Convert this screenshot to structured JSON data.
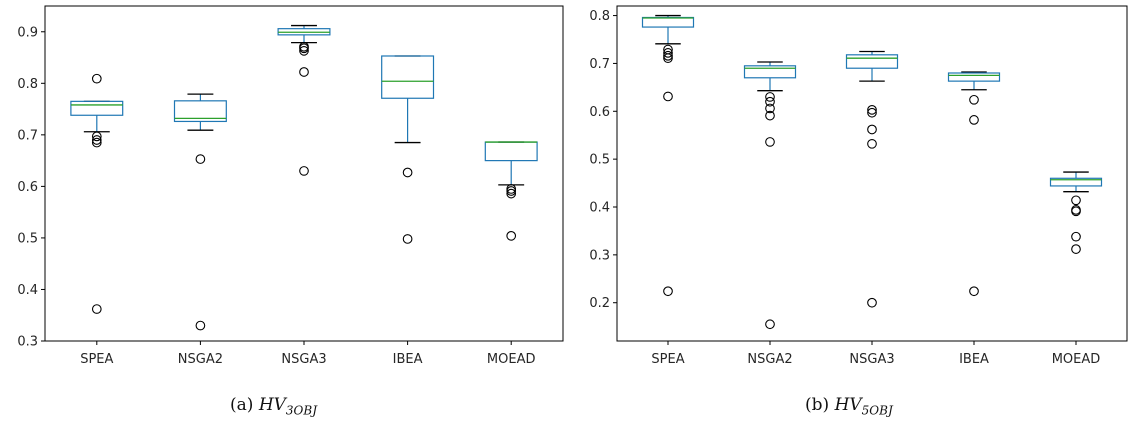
{
  "chart_data": [
    {
      "type": "boxplot",
      "categories": [
        "SPEA",
        "NSGA2",
        "NSGA3",
        "IBEA",
        "MOEAD"
      ],
      "ylim": [
        0.3,
        0.95
      ],
      "yticks": [
        "0.3",
        "0.4",
        "0.5",
        "0.6",
        "0.7",
        "0.8",
        "0.9"
      ],
      "grid": false,
      "caption": {
        "prefix": "(a) ",
        "main": "HV",
        "sub": "3OBJ"
      },
      "colors": {
        "box": "#1f77b4",
        "median": "#2ca02c",
        "whisker": "#1f77b4",
        "cap": "#000000",
        "flier": "#000000"
      },
      "boxes": [
        {
          "name": "SPEA",
          "whislo": 0.706,
          "q1": 0.738,
          "med": 0.758,
          "q3": 0.765,
          "whishi": 0.765,
          "fliers": [
            0.809,
            0.697,
            0.69,
            0.685,
            0.362
          ]
        },
        {
          "name": "NSGA2",
          "whislo": 0.709,
          "q1": 0.726,
          "med": 0.732,
          "q3": 0.766,
          "whishi": 0.779,
          "fliers": [
            0.653,
            0.33
          ]
        },
        {
          "name": "NSGA3",
          "whislo": 0.879,
          "q1": 0.894,
          "med": 0.899,
          "q3": 0.906,
          "whishi": 0.912,
          "fliers": [
            0.871,
            0.868,
            0.863,
            0.822,
            0.63
          ]
        },
        {
          "name": "IBEA",
          "whislo": 0.685,
          "q1": 0.771,
          "med": 0.804,
          "q3": 0.853,
          "whishi": 0.853,
          "fliers": [
            0.627,
            0.498
          ]
        },
        {
          "name": "MOEAD",
          "whislo": 0.603,
          "q1": 0.65,
          "med": 0.686,
          "q3": 0.686,
          "whishi": 0.686,
          "fliers": [
            0.595,
            0.591,
            0.586,
            0.504
          ]
        }
      ]
    },
    {
      "type": "boxplot",
      "categories": [
        "SPEA",
        "NSGA2",
        "NSGA3",
        "IBEA",
        "MOEAD"
      ],
      "ylim": [
        0.12,
        0.82
      ],
      "yticks": [
        "0.2",
        "0.3",
        "0.4",
        "0.5",
        "0.6",
        "0.7",
        "0.8"
      ],
      "grid": false,
      "caption": {
        "prefix": "(b) ",
        "main": "HV",
        "sub": "5OBJ"
      },
      "colors": {
        "box": "#1f77b4",
        "median": "#2ca02c",
        "whisker": "#1f77b4",
        "cap": "#000000",
        "flier": "#000000"
      },
      "boxes": [
        {
          "name": "SPEA",
          "whislo": 0.741,
          "q1": 0.776,
          "med": 0.795,
          "q3": 0.796,
          "whishi": 0.8,
          "fliers": [
            0.729,
            0.722,
            0.716,
            0.711,
            0.631,
            0.224
          ]
        },
        {
          "name": "NSGA2",
          "whislo": 0.643,
          "q1": 0.67,
          "med": 0.69,
          "q3": 0.695,
          "whishi": 0.703,
          "fliers": [
            0.63,
            0.62,
            0.606,
            0.591,
            0.536,
            0.155
          ]
        },
        {
          "name": "NSGA3",
          "whislo": 0.663,
          "q1": 0.69,
          "med": 0.711,
          "q3": 0.718,
          "whishi": 0.725,
          "fliers": [
            0.603,
            0.597,
            0.562,
            0.532,
            0.2
          ]
        },
        {
          "name": "IBEA",
          "whislo": 0.645,
          "q1": 0.663,
          "med": 0.675,
          "q3": 0.68,
          "whishi": 0.682,
          "fliers": [
            0.624,
            0.582,
            0.224
          ]
        },
        {
          "name": "MOEAD",
          "whislo": 0.432,
          "q1": 0.444,
          "med": 0.457,
          "q3": 0.46,
          "whishi": 0.473,
          "fliers": [
            0.414,
            0.394,
            0.391,
            0.338,
            0.312
          ]
        }
      ]
    }
  ]
}
